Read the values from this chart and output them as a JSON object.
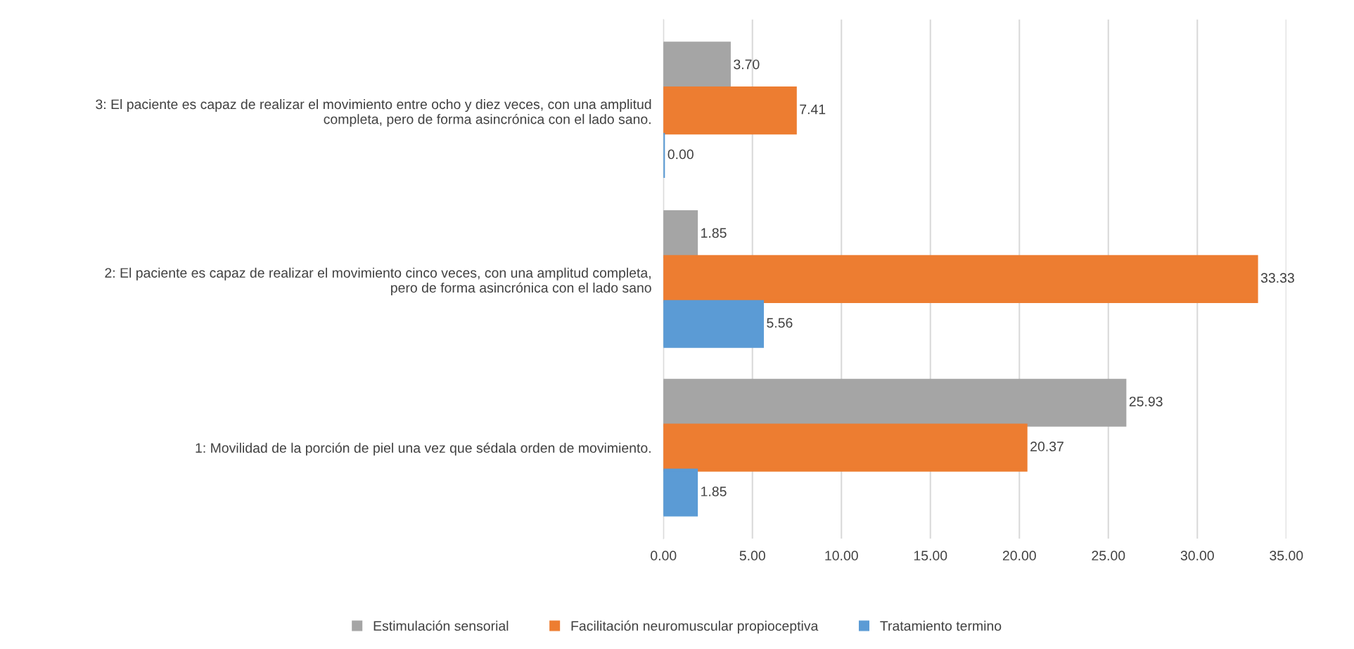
{
  "chart_data": {
    "type": "bar",
    "orientation": "horizontal",
    "categories": [
      "3: El paciente es capaz de realizar el movimiento entre ocho y diez veces, con una amplitud\ncompleta, pero de forma asincrónica con el lado sano.",
      "2: El paciente es capaz de realizar el movimiento cinco veces, con una amplitud completa,\npero de forma asincrónica con el lado sano",
      "1: Movilidad de la porción de piel una vez que sédala orden de movimiento."
    ],
    "series": [
      {
        "name": "Estimulación sensorial",
        "color": "#a5a5a5",
        "values": [
          3.7,
          1.85,
          25.93
        ],
        "value_labels": [
          "3.70",
          "1.85",
          "25.93"
        ]
      },
      {
        "name": "Facilitación neuromuscular propioceptiva",
        "color": "#ed7d31",
        "values": [
          7.41,
          33.33,
          20.37
        ],
        "value_labels": [
          "7.41",
          "33.33",
          "20.37"
        ]
      },
      {
        "name": "Tratamiento termino",
        "color": "#5b9bd5",
        "values": [
          0.0,
          5.56,
          1.85
        ],
        "value_labels": [
          "0.00",
          "5.56",
          "1.85"
        ]
      }
    ],
    "xlim": [
      0,
      35
    ],
    "xticks": [
      {
        "value": 0,
        "label": "0.00"
      },
      {
        "value": 5,
        "label": "5.00"
      },
      {
        "value": 10,
        "label": "10.00"
      },
      {
        "value": 15,
        "label": "15.00"
      },
      {
        "value": 20,
        "label": "20.00"
      },
      {
        "value": 25,
        "label": "25.00"
      },
      {
        "value": 30,
        "label": "30.00"
      },
      {
        "value": 35,
        "label": "35.00"
      }
    ],
    "grid": "x",
    "legend": "bottom"
  }
}
